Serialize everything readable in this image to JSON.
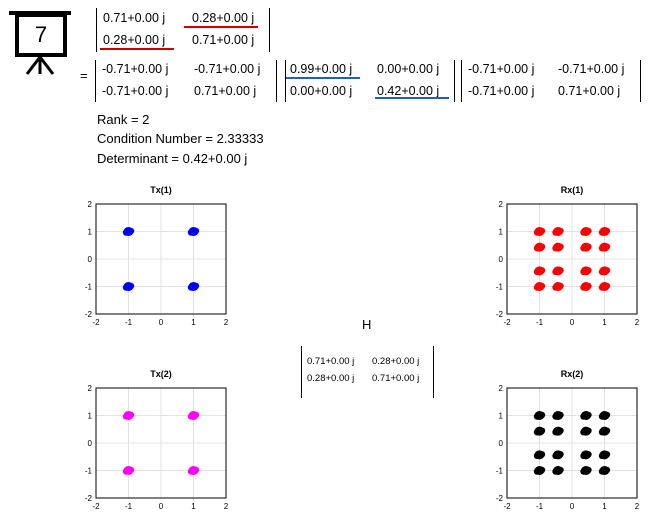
{
  "slide_badge": {
    "number": "7",
    "icon": "presentation-board-icon"
  },
  "equation": {
    "H": [
      [
        "0.71+0.00 j",
        "0.28+0.00 j"
      ],
      [
        "0.28+0.00 j",
        "0.71+0.00 j"
      ]
    ],
    "equals": "=",
    "U": [
      [
        "-0.71+0.00 j",
        "-0.71+0.00 j"
      ],
      [
        "-0.71+0.00 j",
        "0.71+0.00 j"
      ]
    ],
    "S": [
      [
        "0.99+0.00 j",
        "0.00+0.00 j"
      ],
      [
        "0.00+0.00 j",
        "0.42+0.00 j"
      ]
    ],
    "V": [
      [
        "-0.71+0.00 j",
        "-0.71+0.00 j"
      ],
      [
        "-0.71+0.00 j",
        "0.71+0.00 j"
      ]
    ],
    "highlight_colors": {
      "offdiag": "#cc0000",
      "singular": "#1f5fbf"
    }
  },
  "stats": {
    "rank": "Rank = 2",
    "condition": "Condition Number = 2.33333",
    "determinant": "Determinant = 0.42+0.00 j"
  },
  "middle_label": "H",
  "middle_matrix": [
    [
      "0.71+0.00 j",
      "0.28+0.00 j"
    ],
    [
      "0.28+0.00 j",
      "0.71+0.00 j"
    ]
  ],
  "chart_data": [
    {
      "type": "scatter",
      "title": "Tx(1)",
      "color": "#0000ff",
      "xlim": [
        -2,
        2
      ],
      "ylim": [
        -2,
        2
      ],
      "ticks": [
        -2,
        -1,
        0,
        1,
        2
      ],
      "grid": true,
      "points": [
        [
          -1,
          1
        ],
        [
          1,
          1
        ],
        [
          -1,
          -1
        ],
        [
          1,
          -1
        ]
      ]
    },
    {
      "type": "scatter",
      "title": "Rx(1)",
      "color": "#ff0000",
      "xlim": [
        -2,
        2
      ],
      "ylim": [
        -2,
        2
      ],
      "ticks": [
        -2,
        -1,
        0,
        1,
        2
      ],
      "grid": true,
      "points": [
        [
          -1,
          1
        ],
        [
          -0.43,
          1
        ],
        [
          0.43,
          1
        ],
        [
          1,
          1
        ],
        [
          -1,
          0.43
        ],
        [
          -0.43,
          0.43
        ],
        [
          0.43,
          0.43
        ],
        [
          1,
          0.43
        ],
        [
          -1,
          -0.43
        ],
        [
          -0.43,
          -0.43
        ],
        [
          0.43,
          -0.43
        ],
        [
          1,
          -0.43
        ],
        [
          -1,
          -1
        ],
        [
          -0.43,
          -1
        ],
        [
          0.43,
          -1
        ],
        [
          1,
          -1
        ]
      ]
    },
    {
      "type": "scatter",
      "title": "Tx(2)",
      "color": "#ff00ff",
      "xlim": [
        -2,
        2
      ],
      "ylim": [
        -2,
        2
      ],
      "ticks": [
        -2,
        -1,
        0,
        1,
        2
      ],
      "grid": true,
      "points": [
        [
          -1,
          1
        ],
        [
          1,
          1
        ],
        [
          -1,
          -1
        ],
        [
          1,
          -1
        ]
      ]
    },
    {
      "type": "scatter",
      "title": "Rx(2)",
      "color": "#000000",
      "xlim": [
        -2,
        2
      ],
      "ylim": [
        -2,
        2
      ],
      "ticks": [
        -2,
        -1,
        0,
        1,
        2
      ],
      "grid": true,
      "points": [
        [
          -1,
          1
        ],
        [
          -0.43,
          1
        ],
        [
          0.43,
          1
        ],
        [
          1,
          1
        ],
        [
          -1,
          0.43
        ],
        [
          -0.43,
          0.43
        ],
        [
          0.43,
          0.43
        ],
        [
          1,
          0.43
        ],
        [
          -1,
          -0.43
        ],
        [
          -0.43,
          -0.43
        ],
        [
          0.43,
          -0.43
        ],
        [
          1,
          -0.43
        ],
        [
          -1,
          -1
        ],
        [
          -0.43,
          -1
        ],
        [
          0.43,
          -1
        ],
        [
          1,
          -1
        ]
      ]
    }
  ]
}
